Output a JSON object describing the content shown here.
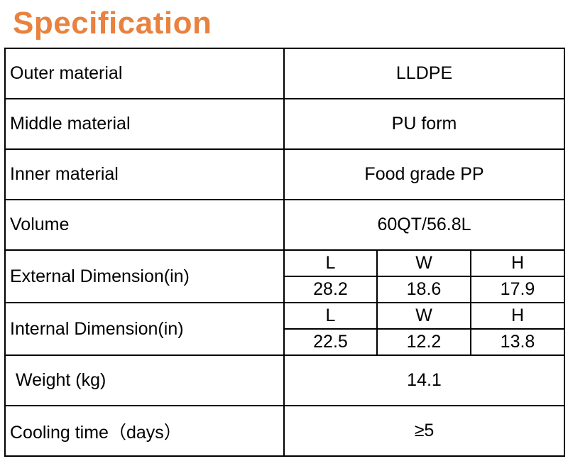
{
  "title": "Specification",
  "accent_color": "#e8823f",
  "rows": {
    "outer": {
      "label": "Outer material",
      "value": "LLDPE"
    },
    "middle": {
      "label": "Middle material",
      "value": "PU form"
    },
    "inner": {
      "label": "Inner material",
      "value": "Food grade PP"
    },
    "volume": {
      "label": "Volume",
      "value": "60QT/56.8L"
    },
    "external": {
      "label": "External Dimension(in)",
      "headers": [
        "L",
        "W",
        "H"
      ],
      "values": [
        "28.2",
        "18.6",
        "17.9"
      ]
    },
    "internal": {
      "label": "Internal Dimension(in)",
      "headers": [
        "L",
        "W",
        "H"
      ],
      "values": [
        "22.5",
        "12.2",
        "13.8"
      ]
    },
    "weight": {
      "label": "Weight (kg)",
      "value": "14.1"
    },
    "cooling": {
      "label": "Cooling time（days）",
      "value": "≥5"
    }
  }
}
